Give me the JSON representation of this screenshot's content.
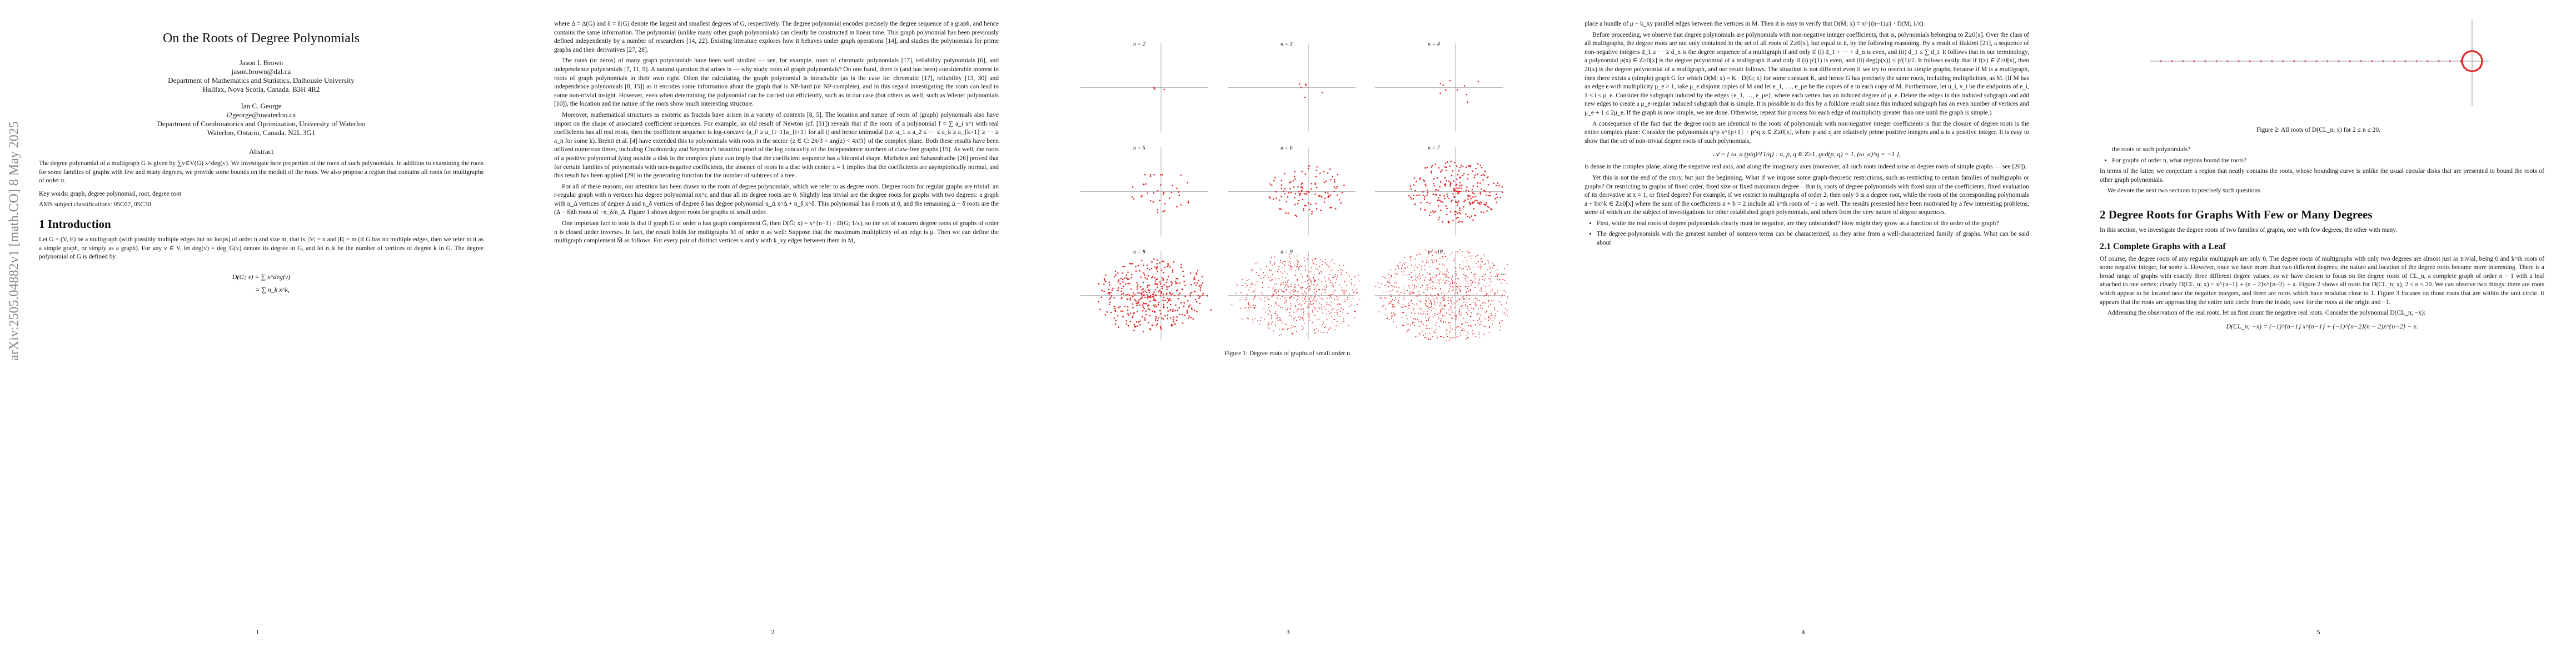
{
  "arxiv_id": "arXiv:2505.04882v1  [math.CO]  8 May 2025",
  "page1": {
    "title": "On the Roots of Degree Polynomials",
    "author1": "Jason I. Brown",
    "email1": "jason.brown@dal.ca",
    "affil1a": "Department of Mathematics and Statistics, Dalhousie University",
    "affil1b": "Halifax, Nova Scotia, Canada. B3H 4R2",
    "author2": "Ian C. George",
    "email2": "i2george@uwaterloo.ca",
    "affil2a": "Department of Combinatorics and Optimization, University of Waterloo",
    "affil2b": "Waterloo, Ontario, Canada. N2L 3G1",
    "abstract_title": "Abstract",
    "abstract": "The degree polynomial of a multigraph G is given by ∑v∈V(G) x^deg(v). We investigate here properties of the roots of such polynomials. In addition to examining the roots for some families of graphs with few and many degrees, we provide some bounds on the moduli of the roots. We also propose a region that contains all roots for multigraphs of order n.",
    "keywords": "Key words: graph, degree polynomial, root, degree root",
    "ams": "AMS subject classifications: 05C07, 05C30",
    "sec_title": "1   Introduction",
    "intro": "Let G = (V, E) be a multigraph (with possibly multiple edges but no loops) of order n and size m, that is, |V| = n and |E| = m (if G has no multiple edges, then we refer to it as a simple graph, or simply as a graph). For any v ∈ V, let deg(v) = deg_G(v) denote its degree in G, and let n_k be the number of vertices of degree k in G. The degree polynomial of G is defined by",
    "formula1": "D(G; x)  =  ∑ x^deg(v)",
    "formula2": "=  ∑ n_k x^k,",
    "page_number": "1"
  },
  "page2": {
    "p1": "where Δ = Δ(G) and δ = δ(G) denote the largest and smallest degrees of G, respectively. The degree polynomial encodes precisely the degree sequence of a graph, and hence contains the same information. The polynomial (unlike many other graph polynomials) can clearly be constructed in linear time. This graph polynomial has been previously defined independently by a number of researchers [14, 22]. Existing literature explores how it behaves under graph operations [14], and studies the polynomials for prime graphs and their derivatives [27, 28].",
    "p2": "The roots (or zeros) of many graph polynomials have been well studied — see, for example, roots of chromatic polynomials [17], reliability polynomials [6], and independence polynomials [7, 11, 9]. A natural question that arises is — why study roots of graph polynomials? On one hand, there is (and has been) considerable interest in roots of graph polynomials in their own right. Often the calculating the graph polynomial is intractable (as is the case for chromatic [17], reliability [13, 30] and independence polynomials [8, 15]) as it encodes some information about the graph that is NP-hard (or NP-complete), and in this regard investigating the roots can lead to some non-trivial insight. However, even when determining the polynomial can be carried out efficiently, such as in our case (but others as well, such as Wiener polynomials [10]), the location and the nature of the roots show much interesting structure.",
    "p3": "Moreover, mathematical structures as esoteric as fractals have arisen in a variety of contexts [8, 5]. The location and nature of roots of (graph) polynomials also have import on the shape of associated coefficient sequences. For example, an old result of Newton (cf. [31]) reveals that if the roots of a polynomial f = ∑ a_i x^i with real coefficients has all real roots, then the coefficient sequence is log-concave (a_i² ≥ a_{i−1}a_{i+1} for all i) and hence unimodal (i.e. a_1 ≤ a_2 ≤ ··· ≤ a_k ≥ a_{k+1} ≥ ··· ≥ a_n for some k). Brenti et al. [4] have extended this to polynomials with roots in the sector {z ∈ C: 2π/3 < arg(z) < 4π/3} of the complex plane. Both these results have been utilized numerous times, including Chudnovsky and Seymour's beautiful proof of the log concavity of the independence numbers of claw-free graphs [15]. As well, the roots of a positive polynomial lying outside a disk in the complex plane can imply that the coefficient sequence has a binomial shape. Michelen and Sahasrabudhe [26] proved that for certain families of polynomials with non-negative coefficients, the absence of roots in a disc with center z = 1 implies that the coefficients are asymptotically normal, and this result has been applied [29] to the generating function for the number of subtrees of a tree.",
    "p4": "For all of these reasons, our attention has been drawn to the roots of degree polynomials, which we refer to as degree roots. Degree roots for regular graphs are trivial: an r-regular graph with n vertices has degree polynomial nx^r, and thus all its degree roots are 0. Slightly less trivial are the degree roots for graphs with two degrees: a graph with n_Δ vertices of degree Δ and n_δ vertices of degree δ has degree polynomial n_Δ x^Δ + n_δ x^δ. This polynomial has δ roots at 0, and the remaining Δ − δ roots are the (Δ − δ)th roots of −n_δ/n_Δ. Figure 1 shows degree roots for graphs of small order.",
    "p5": "One important fact to note is that if graph G of order n has graph complement Ḡ, then D(Ḡ; x) = x^{n−1} · D(G; 1/x), so the set of nonzero degree roots of graphs of order n is closed under inverses. In fact, the result holds for multigraphs M of order n as well: Suppose that the maximum multiplicity of an edge is μ. Then we can define the multigraph complement M̄ as follows. For every pair of distinct vertices x and y with k_xy edges between them in M,",
    "page_number": "2"
  },
  "page3": {
    "panels": [
      "n = 2",
      "n = 3",
      "n = 4",
      "n = 5",
      "n = 6",
      "n = 7",
      "n = 8",
      "n = 9",
      "n = 10"
    ],
    "caption": "Figure 1: Degree roots of graphs of small order n.",
    "page_number": "3"
  },
  "page4": {
    "p1": "place a bundle of μ − k_xy parallel edges between the vertices in M̄. Then it is easy to verify that D(M̄; x) = x^{(n−1)μ} · D(M; 1/x).",
    "p2": "Before proceeding, we observe that degree polynomials are polynomials with non-negative integer coefficients, that is, polynomials belonging to Z≥0[x]. Over the class of all multigraphs, the degree roots are not only contained in the set of all roots of Z≥0[x], but equal to it, by the following reasoning. By a result of Hakimi [21], a sequence of non-negative integers d_1 ≥ ··· ≥ d_n is the degree sequence of a multigraph if and only if (i) d_1 + ··· + d_n is even, and (ii) d_1 ≤ ∑ d_i. It follows that in our terminology, a polynomial p(x) ∈ Z≥0[x] is the degree polynomial of a multigraph if and only if (i) p′(1) is even, and (ii) deg(p(x)) ≤ p′(1)/2. It follows easily that if f(x) ∈ Z≥0[x], then 2f(x) is the degree polynomial of a multigraph, and our result follows. The situation is not different even if we try to restrict to simple graphs, because if M is a multigraph, then there exists a (simple) graph G for which D(M; x) = K · D(G; x) for some constant K, and hence G has precisely the same roots, including multiplicities, as M. (If M has an edge e with multiplicity μ_e > 1, take μ_e disjoint copies of M and let e_1, …, e_μe be the copies of e in each copy of M. Furthermore, let u_i, v_i be the endpoints of e_i, 1 ≤ i ≤ μ_e. Consider the subgraph induced by the edges {e_1, …, e_μe}, where each vertex has an induced degree of μ_e. Delete the edges in this induced subgraph and add new edges to create a μ_e-regular induced subgraph that is simple. It is possible to do this by a folklore result since this induced subgraph has an even number of vertices and μ_e + 1 ≤ 2μ_e. If the graph is now simple, we are done. Otherwise, repeat this process for each edge of multiplicity greater than one until the graph is simple.)",
    "p3": "A consequence of the fact that the degree roots are identical to the roots of polynomials with non-negative integer coefficients is that the closure of degree roots is the entire complex plane: Consider the polynomials q^p x^{p+1} + p^q x ∈ Z≥0[x], where p and q are relatively prime positive integers and a is a positive integer. It is easy to show that the set of non-trivial degree roots of such polynomials,",
    "set_formula": "𝒜 = { ω_a (p/q)^{1/q} : a, p, q ∈ Z≥1, gcd(p, q) = 1, (ω_a)^q = −1 },",
    "p4": "is dense in the complex plane, along the negative real axis, and along the imaginary axes (moreover, all such roots indeed arise as degree roots of simple graphs — see [20]).",
    "p5": "Yet this is not the end of the story, but just the beginning. What if we impose some graph-theoretic restrictions, such as restricting to certain families of multigraphs or graphs? Or restricting to graphs of fixed order, fixed size or fixed maximum degree – that is, roots of degree polynomials with fixed sum of the coefficients, fixed evaluation of its derivative at x = 1, or fixed degree? For example, if we restrict to multigraphs of order 2, then only 0 is a degree root, while the roots of the corresponding polynomials a + bx^k ∈ Z≥0[x] where the sum of the coefficients a + b = 2 include all k^th roots of −1 as well. The results presented here been motivated by a few interesting problems, some of which are the subject of investigations for other established graph polynomials, and others from the very nature of degree sequences.",
    "b1": "First, while the real roots of degree polynomials clearly must be negative, are they unbounded? How might they grow as a function of the order of the graph?",
    "b2": "The degree polynomials with the greatest number of nonzero terms can be characterized, as they arise from a well-characterized family of graphs. What can be said about",
    "page_number": "4"
  },
  "page5": {
    "figure2_caption": "Figure 2: All roots of D(CL_n; x) for 2 ≤ n ≤ 20.",
    "cont": "the roots of such polynomials?",
    "b3": "For graphs of order n, what regions bound the roots?",
    "p1": "In terms of the latter, we conjecture a region that neatly contains the roots, whose bounding curve is unlike the usual circular disks that are presented to bound the roots of other graph polynomials.",
    "p2": "We devote the next two sections to precisely such questions.",
    "sec_title": "2   Degree Roots for Graphs With Few or Many Degrees",
    "p3": "In this section, we investigate the degree roots of two families of graphs, one with few degrees, the other with many.",
    "subsec_title": "2.1   Complete Graphs with a Leaf",
    "p4": "Of course, the degree roots of any regular multigraph are only 0. The degree roots of multigraphs with only two degrees are almost just as trivial, being 0 and k^th roots of some negative integer, for some k. However, once we have more than two different degrees, the nature and location of the degree roots become more interesting. There is a broad range of graphs with exactly three different degree values, so we have chosen to focus on the degree roots of CL_n, a complete graph of order n − 1 with a leaf attached to one vertex; clearly D(CL_n; x) = x^{n−1} + (n − 2)x^{n−2} + x. Figure 2 shows all roots for D(CL_n; x), 2 ≤ n ≤ 20. We can observe two things: there are roots which appear to be located near the negative integers, and there are roots which have modulus close to 1. Figure 3 focuses on those roots that are within the unit circle. It appears that the roots are approaching the entire unit circle from the inside, save for the roots at the origin and −1.",
    "p5": "Addressing the observation of the real roots, let us first count the negative real roots. Consider the polynomial D(CL_n; −x):",
    "formula": "D(CL_n; −x) = (−1)^{n−1} x^{n−1} + (−1)^{n−2}(n − 2)x^{n−2} − x.",
    "page_number": "5"
  }
}
